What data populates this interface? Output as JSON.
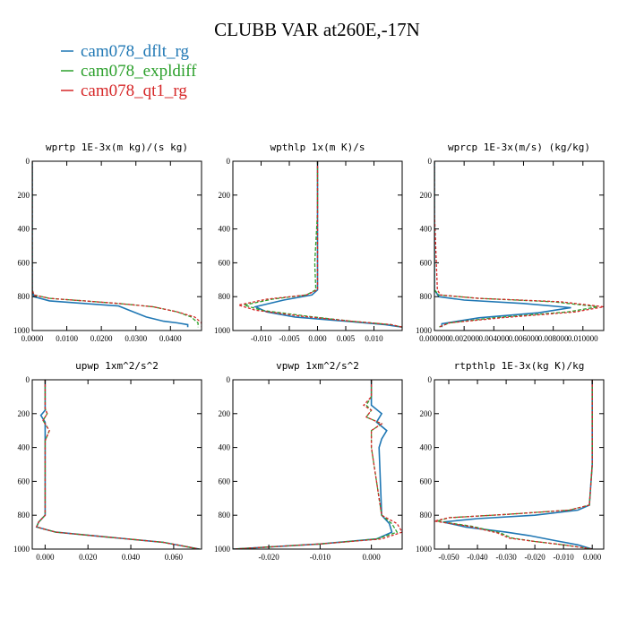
{
  "title": "CLUBB VAR at260E,-17N",
  "legend": [
    {
      "label": "cam078_dflt_rg",
      "color": "#1f77b4"
    },
    {
      "label": "cam078_expldiff",
      "color": "#2ca02c"
    },
    {
      "label": "cam078_qt1_rg",
      "color": "#d62728"
    }
  ],
  "chart_data": [
    {
      "type": "line",
      "title": "wprtp  1E-3x(m kg)/(s kg)",
      "xlim": [
        0,
        0.049
      ],
      "ylim": [
        1000,
        0
      ],
      "xticks": [
        0,
        0.01,
        0.02,
        0.03,
        0.04
      ],
      "xtick_labels": [
        "0.0000",
        "0.0100",
        "0.0200",
        "0.0300",
        "0.0400"
      ],
      "yticks": [
        0,
        200,
        400,
        600,
        800,
        1000
      ],
      "ytick_labels": [
        "0",
        "200",
        "400",
        "600",
        "800",
        "1000"
      ],
      "series": [
        {
          "name": "cam078_dflt_rg",
          "x": [
            0,
            0,
            0,
            0.0005,
            0.005,
            0.015,
            0.025,
            0.028,
            0.033,
            0.038,
            0.042,
            0.045,
            0.045
          ],
          "y": [
            0,
            500,
            760,
            800,
            825,
            840,
            855,
            880,
            920,
            945,
            955,
            965,
            980
          ]
        },
        {
          "name": "cam078_expldiff",
          "x": [
            0,
            0,
            0,
            0.0005,
            0.005,
            0.015,
            0.025,
            0.035,
            0.042,
            0.046,
            0.048,
            0.048
          ],
          "y": [
            0,
            500,
            760,
            790,
            810,
            825,
            840,
            860,
            890,
            920,
            955,
            980
          ]
        },
        {
          "name": "cam078_qt1_rg",
          "x": [
            0,
            0,
            0,
            0.0005,
            0.005,
            0.015,
            0.025,
            0.035,
            0.042,
            0.047,
            0.049,
            0.049
          ],
          "y": [
            0,
            500,
            760,
            790,
            810,
            825,
            840,
            860,
            890,
            920,
            955,
            980
          ]
        }
      ]
    },
    {
      "type": "line",
      "title": "wpthlp  1x(m K)/s",
      "xlim": [
        -0.015,
        0.015
      ],
      "ylim": [
        1000,
        0
      ],
      "xticks": [
        -0.01,
        -0.005,
        0,
        0.005,
        0.01
      ],
      "xtick_labels": [
        "-0.010",
        "-0.005",
        "0.000",
        "0.005",
        "0.010"
      ],
      "yticks": [
        0,
        200,
        400,
        600,
        800,
        1000
      ],
      "ytick_labels": [
        "0",
        "200",
        "400",
        "600",
        "800",
        "1000"
      ],
      "series": [
        {
          "name": "cam078_dflt_rg",
          "x": [
            0,
            0,
            0,
            0,
            -0.001,
            -0.006,
            -0.011,
            -0.009,
            -0.004,
            0.005,
            0.012,
            0.015
          ],
          "y": [
            0,
            300,
            600,
            760,
            790,
            820,
            860,
            890,
            920,
            945,
            965,
            980
          ]
        },
        {
          "name": "cam078_expldiff",
          "x": [
            0,
            0,
            -0.0005,
            -0.0003,
            -0.002,
            -0.008,
            -0.013,
            -0.01,
            -0.002,
            0.006,
            0.013,
            0.015
          ],
          "y": [
            0,
            300,
            600,
            760,
            790,
            815,
            850,
            880,
            915,
            945,
            965,
            980
          ]
        },
        {
          "name": "cam078_qt1_rg",
          "x": [
            0,
            0,
            0,
            0,
            -0.002,
            -0.009,
            -0.014,
            -0.011,
            -0.003,
            0.006,
            0.013,
            0.015
          ],
          "y": [
            0,
            300,
            600,
            760,
            790,
            815,
            850,
            880,
            915,
            945,
            965,
            980
          ]
        }
      ]
    },
    {
      "type": "line",
      "title": "wprcp  1E-3x(m/s) (kg/kg)",
      "xlim": [
        0,
        0.0114
      ],
      "ylim": [
        1000,
        0
      ],
      "xticks": [
        0,
        0.002,
        0.004,
        0.006,
        0.008,
        0.01
      ],
      "xtick_labels": [
        "0.000000",
        "0.002000",
        "0.004000",
        "0.006000",
        "0.008000",
        "0.010000"
      ],
      "yticks": [
        0,
        200,
        400,
        600,
        800,
        1000
      ],
      "ytick_labels": [
        "0",
        "200",
        "400",
        "600",
        "800",
        "1000"
      ],
      "series": [
        {
          "name": "cam078_dflt_rg",
          "x": [
            0,
            0,
            0,
            0.0003,
            0.002,
            0.006,
            0.0092,
            0.007,
            0.003,
            0.0005,
            0.0005
          ],
          "y": [
            0,
            300,
            760,
            800,
            820,
            840,
            865,
            895,
            925,
            960,
            980
          ]
        },
        {
          "name": "cam078_expldiff",
          "x": [
            0,
            0,
            0,
            0.0003,
            0.003,
            0.008,
            0.011,
            0.009,
            0.004,
            0.001,
            0.0003
          ],
          "y": [
            0,
            300,
            760,
            790,
            810,
            830,
            860,
            890,
            925,
            955,
            980
          ]
        },
        {
          "name": "cam078_qt1_rg",
          "x": [
            0,
            0,
            0.0002,
            0.0004,
            0.003,
            0.0085,
            0.0114,
            0.0095,
            0.0045,
            0.001,
            0.0003
          ],
          "y": [
            0,
            300,
            760,
            790,
            810,
            830,
            860,
            890,
            925,
            955,
            980
          ]
        }
      ]
    },
    {
      "type": "line",
      "title": "upwp  1xm^2/s^2",
      "xlim": [
        -0.006,
        0.073
      ],
      "ylim": [
        1000,
        0
      ],
      "xticks": [
        0,
        0.02,
        0.04,
        0.06
      ],
      "xtick_labels": [
        "0.000",
        "0.020",
        "0.040",
        "0.060"
      ],
      "yticks": [
        0,
        200,
        400,
        600,
        800,
        1000
      ],
      "ytick_labels": [
        "0",
        "200",
        "400",
        "600",
        "800",
        "1000"
      ],
      "series": [
        {
          "name": "cam078_dflt_rg",
          "x": [
            0,
            0,
            -0.002,
            0,
            0,
            0,
            -0.003,
            -0.004,
            0.005,
            0.03,
            0.055,
            0.072
          ],
          "y": [
            0,
            180,
            210,
            250,
            300,
            800,
            840,
            870,
            900,
            930,
            960,
            1000
          ]
        },
        {
          "name": "cam078_expldiff",
          "x": [
            0,
            0,
            0.001,
            -0.001,
            0.002,
            0,
            0,
            -0.003,
            -0.004,
            0.005,
            0.03,
            0.055,
            0.072
          ],
          "y": [
            0,
            170,
            200,
            240,
            300,
            360,
            800,
            840,
            870,
            900,
            930,
            960,
            1000
          ]
        },
        {
          "name": "cam078_qt1_rg",
          "x": [
            0,
            0,
            0.001,
            -0.001,
            0.002,
            0,
            0,
            -0.003,
            -0.004,
            0.005,
            0.03,
            0.055,
            0.072
          ],
          "y": [
            0,
            170,
            200,
            240,
            300,
            360,
            800,
            840,
            870,
            900,
            930,
            960,
            1000
          ]
        }
      ]
    },
    {
      "type": "line",
      "title": "vpwp  1xm^2/s^2",
      "xlim": [
        -0.027,
        0.006
      ],
      "ylim": [
        1000,
        0
      ],
      "xticks": [
        -0.02,
        -0.01,
        0
      ],
      "xtick_labels": [
        "-0.020",
        "-0.010",
        "0.000"
      ],
      "yticks": [
        0,
        200,
        400,
        600,
        800,
        1000
      ],
      "ytick_labels": [
        "0",
        "200",
        "400",
        "600",
        "800",
        "1000"
      ],
      "series": [
        {
          "name": "cam078_dflt_rg",
          "x": [
            0,
            0,
            0.002,
            0.001,
            0.003,
            0.002,
            0.0015,
            0.002,
            0.0035,
            0.004,
            0.001,
            -0.01,
            -0.027
          ],
          "y": [
            0,
            150,
            200,
            250,
            300,
            350,
            400,
            800,
            850,
            900,
            940,
            970,
            1000
          ]
        },
        {
          "name": "cam078_expldiff",
          "x": [
            0,
            0,
            -0.001,
            0,
            -0.001,
            0.002,
            0,
            0,
            0.002,
            0.004,
            0.005,
            0.001,
            -0.01,
            -0.027
          ],
          "y": [
            0,
            100,
            150,
            180,
            220,
            260,
            300,
            400,
            800,
            850,
            900,
            940,
            970,
            1000
          ]
        },
        {
          "name": "cam078_qt1_rg",
          "x": [
            0,
            0,
            -0.0015,
            0,
            -0.001,
            0.002,
            0,
            0,
            0.002,
            0.005,
            0.006,
            0.002,
            -0.01,
            -0.027
          ],
          "y": [
            0,
            100,
            150,
            180,
            220,
            260,
            300,
            400,
            800,
            850,
            900,
            940,
            970,
            1000
          ]
        }
      ]
    },
    {
      "type": "line",
      "title": "rtpthlp  1E-3x(kg K)/kg",
      "xlim": [
        -0.055,
        0.004
      ],
      "ylim": [
        1000,
        0
      ],
      "xticks": [
        -0.05,
        -0.04,
        -0.03,
        -0.02,
        -0.01,
        0
      ],
      "xtick_labels": [
        "-0.050",
        "-0.040",
        "-0.030",
        "-0.020",
        "-0.010",
        "0.000"
      ],
      "yticks": [
        0,
        200,
        400,
        600,
        800,
        1000
      ],
      "ytick_labels": [
        "0",
        "200",
        "400",
        "600",
        "800",
        "1000"
      ],
      "series": [
        {
          "name": "cam078_dflt_rg",
          "x": [
            0,
            0,
            -0.001,
            -0.005,
            -0.02,
            -0.04,
            -0.052,
            -0.044,
            -0.03,
            -0.022,
            -0.013,
            -0.005,
            0
          ],
          "y": [
            0,
            500,
            740,
            770,
            800,
            820,
            840,
            870,
            900,
            920,
            950,
            975,
            1000
          ]
        },
        {
          "name": "cam078_expldiff",
          "x": [
            0,
            0,
            -0.001,
            -0.008,
            -0.03,
            -0.05,
            -0.054,
            -0.042,
            -0.032,
            -0.028,
            -0.02,
            -0.01,
            0
          ],
          "y": [
            0,
            500,
            740,
            770,
            795,
            815,
            835,
            865,
            905,
            935,
            955,
            975,
            1000
          ]
        },
        {
          "name": "cam078_qt1_rg",
          "x": [
            0,
            0,
            -0.001,
            -0.008,
            -0.03,
            -0.05,
            -0.055,
            -0.043,
            -0.033,
            -0.029,
            -0.02,
            -0.01,
            0
          ],
          "y": [
            0,
            500,
            740,
            770,
            795,
            815,
            835,
            865,
            905,
            935,
            955,
            975,
            1000
          ]
        }
      ]
    }
  ]
}
